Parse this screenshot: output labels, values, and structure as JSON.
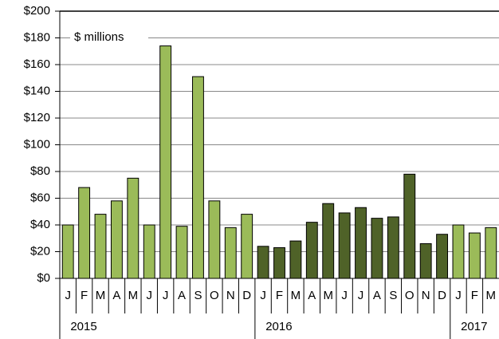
{
  "chart_data": {
    "type": "bar",
    "annotation": "$ millions",
    "groups": [
      {
        "label": "2015",
        "color": "#9bbb59",
        "categories": [
          "J",
          "F",
          "M",
          "A",
          "M",
          "J",
          "J",
          "A",
          "S",
          "O",
          "N",
          "D"
        ],
        "values": [
          40,
          68,
          48,
          58,
          75,
          40,
          174,
          39,
          151,
          58,
          38,
          48
        ]
      },
      {
        "label": "2016",
        "color": "#4f6228",
        "categories": [
          "J",
          "F",
          "M",
          "A",
          "M",
          "J",
          "J",
          "A",
          "S",
          "O",
          "N",
          "D"
        ],
        "values": [
          24,
          23,
          28,
          42,
          56,
          49,
          53,
          45,
          46,
          78,
          26,
          33
        ]
      },
      {
        "label": "2017",
        "color": "#9bbb59",
        "categories": [
          "J",
          "F",
          "M"
        ],
        "values": [
          40,
          34,
          38
        ]
      }
    ],
    "ylim": [
      0,
      200
    ],
    "yticks": [
      {
        "value": 0,
        "label": "$0"
      },
      {
        "value": 20,
        "label": "$20"
      },
      {
        "value": 40,
        "label": "$40"
      },
      {
        "value": 60,
        "label": "$60"
      },
      {
        "value": 80,
        "label": "$80"
      },
      {
        "value": 100,
        "label": "$100"
      },
      {
        "value": 120,
        "label": "$120"
      },
      {
        "value": 140,
        "label": "$140"
      },
      {
        "value": 160,
        "label": "$160"
      },
      {
        "value": 180,
        "label": "$180"
      },
      {
        "value": 200,
        "label": "$200"
      }
    ],
    "grid": true
  }
}
